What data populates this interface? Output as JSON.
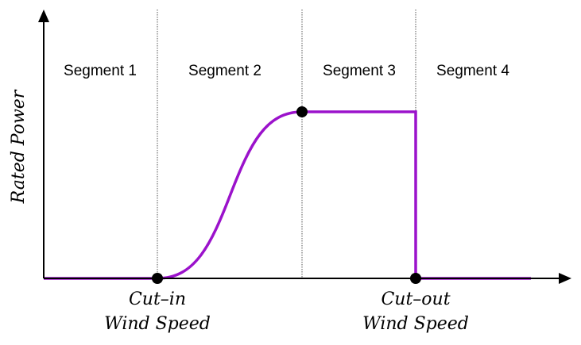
{
  "y_axis_title": "Rated Power",
  "segments": [
    "Segment 1",
    "Segment 2",
    "Segment 3",
    "Segment 4"
  ],
  "markers": {
    "cut_in": {
      "line1": "Cut–in",
      "line2": "Wind Speed"
    },
    "cut_out": {
      "line1": "Cut–out",
      "line2": "Wind Speed"
    }
  },
  "colors": {
    "curve": "#9B12CB",
    "axes": "#000000",
    "boundaries": "#555555",
    "points": "#000000"
  }
}
